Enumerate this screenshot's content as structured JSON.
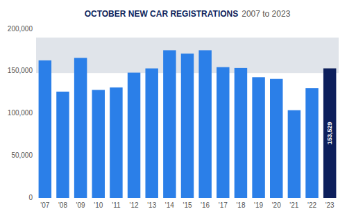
{
  "chart_data": {
    "type": "bar",
    "title": "OCTOBER NEW CAR REGISTRATIONS",
    "subtitle": "2007 to 2023",
    "categories": [
      "'07",
      "'08",
      "'09",
      "'10",
      "'11",
      "'12",
      "'13",
      "'14",
      "'15",
      "'16",
      "'17",
      "'18",
      "'19",
      "'20",
      "'21",
      "'22",
      "'23"
    ],
    "values": [
      163000,
      126000,
      166000,
      128000,
      131000,
      148500,
      153500,
      175000,
      171000,
      175000,
      155000,
      154000,
      143000,
      141000,
      104000,
      130000,
      153529
    ],
    "colors": [
      "#2b7fe8",
      "#2b7fe8",
      "#2b7fe8",
      "#2b7fe8",
      "#2b7fe8",
      "#2b7fe8",
      "#2b7fe8",
      "#2b7fe8",
      "#2b7fe8",
      "#2b7fe8",
      "#2b7fe8",
      "#2b7fe8",
      "#2b7fe8",
      "#2b7fe8",
      "#2b7fe8",
      "#2b7fe8",
      "#0d1f5c"
    ],
    "ylim": [
      0,
      200000
    ],
    "yticks": [
      0,
      {
        "value": 50000,
        "label": "50,000"
      },
      {
        "value": 100000,
        "label": "100,000"
      },
      {
        "value": 150000,
        "label": "150,000"
      },
      {
        "value": 200000,
        "label": "200,000"
      }
    ],
    "grid": false,
    "shaded_region": {
      "ymin": 148000,
      "ymax": 190000,
      "color": "#e0e4ea"
    },
    "annotations": [
      {
        "text": "153,529",
        "x": "'23",
        "y": 153529
      }
    ]
  }
}
